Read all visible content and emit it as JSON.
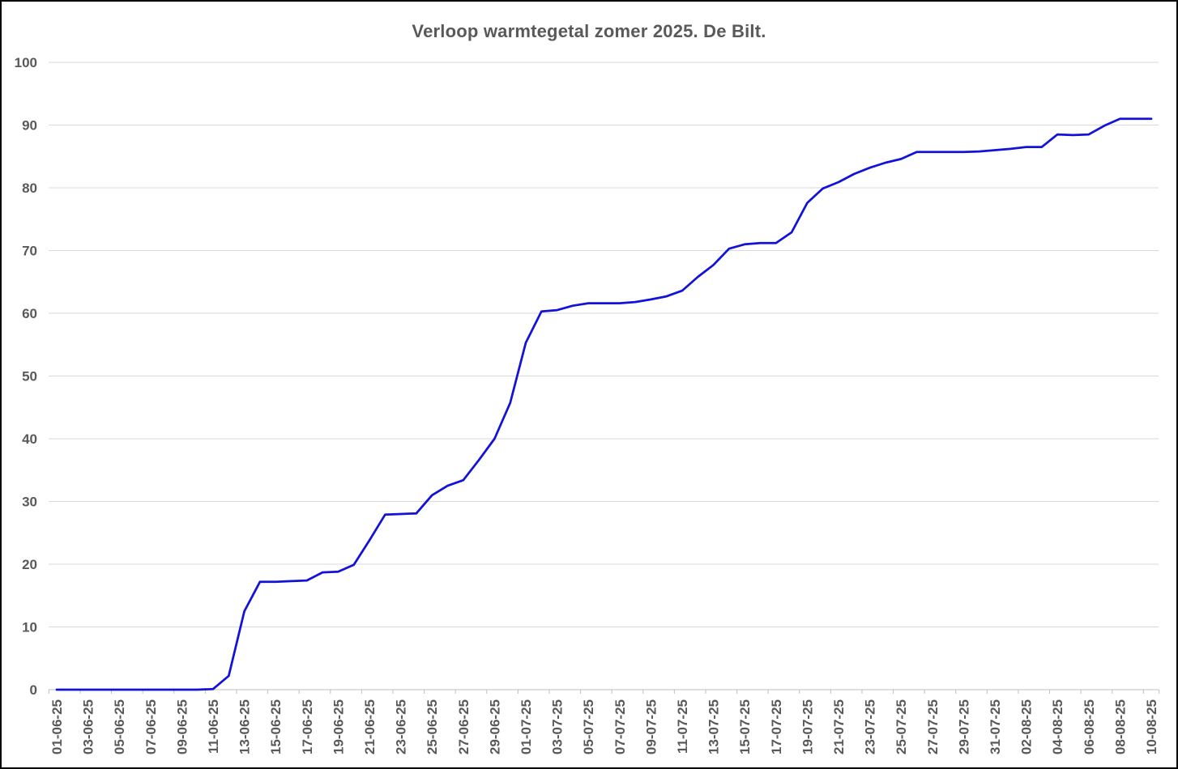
{
  "chart_data": {
    "type": "line",
    "title": "Verloop warmtegetal zomer 2025. De Bilt.",
    "xlabel": "",
    "ylabel": "",
    "ylim": [
      0,
      100
    ],
    "ytick_interval": 10,
    "y_tick_labels": [
      "0",
      "10",
      "20",
      "30",
      "40",
      "50",
      "60",
      "70",
      "80",
      "90",
      "100"
    ],
    "x_tick_interval": 2,
    "grid": "horizontal",
    "legend": "none",
    "line_color": "#1212d9",
    "axis_label_color": "#595959",
    "gridline_color": "#d9d9d9",
    "axis_line_color": "#bfbfbf",
    "background_color": "#ffffff",
    "border_color": "#000000",
    "x": [
      "01-06-25",
      "02-06-25",
      "03-06-25",
      "04-06-25",
      "05-06-25",
      "06-06-25",
      "07-06-25",
      "08-06-25",
      "09-06-25",
      "10-06-25",
      "11-06-25",
      "12-06-25",
      "13-06-25",
      "14-06-25",
      "15-06-25",
      "16-06-25",
      "17-06-25",
      "18-06-25",
      "19-06-25",
      "20-06-25",
      "21-06-25",
      "22-06-25",
      "23-06-25",
      "24-06-25",
      "25-06-25",
      "26-06-25",
      "27-06-25",
      "28-06-25",
      "29-06-25",
      "30-06-25",
      "01-07-25",
      "02-07-25",
      "03-07-25",
      "04-07-25",
      "05-07-25",
      "06-07-25",
      "07-07-25",
      "08-07-25",
      "09-07-25",
      "10-07-25",
      "11-07-25",
      "12-07-25",
      "13-07-25",
      "14-07-25",
      "15-07-25",
      "16-07-25",
      "17-07-25",
      "18-07-25",
      "19-07-25",
      "20-07-25",
      "21-07-25",
      "22-07-25",
      "23-07-25",
      "24-07-25",
      "25-07-25",
      "26-07-25",
      "27-07-25",
      "28-07-25",
      "29-07-25",
      "30-07-25",
      "31-07-25",
      "01-08-25",
      "02-08-25",
      "03-08-25",
      "04-08-25",
      "05-08-25",
      "06-08-25",
      "07-08-25",
      "08-08-25",
      "09-08-25",
      "10-08-25"
    ],
    "values": [
      0,
      0,
      0,
      0,
      0,
      0,
      0,
      0,
      0,
      0,
      0.1,
      2.2,
      12.5,
      17.2,
      17.2,
      17.3,
      17.4,
      18.7,
      18.8,
      19.9,
      23.8,
      27.9,
      28.0,
      28.1,
      31.0,
      32.5,
      33.4,
      36.6,
      40.0,
      45.7,
      55.3,
      60.3,
      60.5,
      61.2,
      61.6,
      61.6,
      61.6,
      61.8,
      62.2,
      62.7,
      63.6,
      65.8,
      67.7,
      70.3,
      71.0,
      71.2,
      71.2,
      72.9,
      77.6,
      79.9,
      80.9,
      82.2,
      83.2,
      84.0,
      84.6,
      85.7,
      85.7,
      85.7,
      85.7,
      85.8,
      86.0,
      86.2,
      86.5,
      86.5,
      88.5,
      88.4,
      88.5,
      89.9,
      91.0,
      91.0,
      91.0
    ]
  }
}
